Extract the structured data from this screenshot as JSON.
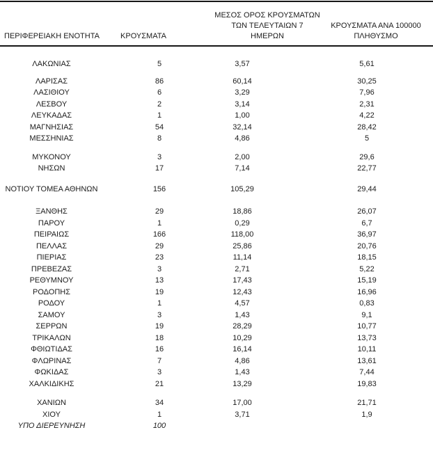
{
  "table": {
    "header": {
      "region": "ΠΕΡΙΦΕΡΕΙΑΚΗ ΕΝΟΤΗΤΑ",
      "cases": "ΚΡΟΥΣΜΑΤΑ",
      "avg7_lines": [
        "ΜΕΣΟΣ ΟΡΟΣ ΚΡΟΥΣΜΑΤΩΝ",
        "ΤΩΝ ΤΕΛΕΥΤΑΙΩΝ 7",
        "ΗΜΕΡΩΝ"
      ],
      "per100k_lines": [
        "ΚΡΟΥΣΜΑΤΑ ΑΝΑ 100000",
        "ΠΛΗΘΥΣΜΟ"
      ]
    },
    "groups": [
      {
        "rows": [
          {
            "region": "ΛΑΚΩΝΙΑΣ",
            "cases": "5",
            "avg7": "3,57",
            "per100k": "5,61"
          }
        ]
      },
      {
        "rows": [
          {
            "region": "ΛΑΡΙΣΑΣ",
            "cases": "86",
            "avg7": "60,14",
            "per100k": "30,25"
          },
          {
            "region": "ΛΑΣΙΘΙΟΥ",
            "cases": "6",
            "avg7": "3,29",
            "per100k": "7,96"
          },
          {
            "region": "ΛΕΣΒΟΥ",
            "cases": "2",
            "avg7": "3,14",
            "per100k": "2,31"
          },
          {
            "region": "ΛΕΥΚΑΔΑΣ",
            "cases": "1",
            "avg7": "1,00",
            "per100k": "4,22"
          },
          {
            "region": "ΜΑΓΝΗΣΙΑΣ",
            "cases": "54",
            "avg7": "32,14",
            "per100k": "28,42"
          },
          {
            "region": "ΜΕΣΣΗΝΙΑΣ",
            "cases": "8",
            "avg7": "4,86",
            "per100k": "5"
          }
        ]
      },
      {
        "rows": [
          {
            "region": "ΜΥΚΟΝΟΥ",
            "cases": "3",
            "avg7": "2,00",
            "per100k": "29,6"
          },
          {
            "region": "ΝΗΣΩΝ",
            "cases": "17",
            "avg7": "7,14",
            "per100k": "22,77"
          }
        ]
      },
      {
        "rows": [
          {
            "region": "ΝΟΤΙΟΥ ΤΟΜΕΑ ΑΘΗΝΩΝ",
            "cases": "156",
            "avg7": "105,29",
            "per100k": "29,44"
          }
        ]
      },
      {
        "rows": [
          {
            "region": "ΞΑΝΘΗΣ",
            "cases": "29",
            "avg7": "18,86",
            "per100k": "26,07"
          },
          {
            "region": "ΠΑΡΟΥ",
            "cases": "1",
            "avg7": "0,29",
            "per100k": "6,7"
          },
          {
            "region": "ΠΕΙΡΑΙΩΣ",
            "cases": "166",
            "avg7": "118,00",
            "per100k": "36,97"
          },
          {
            "region": "ΠΕΛΛΑΣ",
            "cases": "29",
            "avg7": "25,86",
            "per100k": "20,76"
          },
          {
            "region": "ΠΙΕΡΙΑΣ",
            "cases": "23",
            "avg7": "11,14",
            "per100k": "18,15"
          },
          {
            "region": "ΠΡΕΒΕΖΑΣ",
            "cases": "3",
            "avg7": "2,71",
            "per100k": "5,22"
          },
          {
            "region": "ΡΕΘΥΜΝΟΥ",
            "cases": "13",
            "avg7": "17,43",
            "per100k": "15,19"
          },
          {
            "region": "ΡΟΔΟΠΗΣ",
            "cases": "19",
            "avg7": "12,43",
            "per100k": "16,96"
          },
          {
            "region": "ΡΟΔΟΥ",
            "cases": "1",
            "avg7": "4,57",
            "per100k": "0,83"
          },
          {
            "region": "ΣΑΜΟΥ",
            "cases": "3",
            "avg7": "1,43",
            "per100k": "9,1"
          },
          {
            "region": "ΣΕΡΡΩΝ",
            "cases": "19",
            "avg7": "28,29",
            "per100k": "10,77"
          },
          {
            "region": "ΤΡΙΚΑΛΩΝ",
            "cases": "18",
            "avg7": "10,29",
            "per100k": "13,73"
          },
          {
            "region": "ΦΘΙΩΤΙΔΑΣ",
            "cases": "16",
            "avg7": "16,14",
            "per100k": "10,11"
          },
          {
            "region": "ΦΛΩΡΙΝΑΣ",
            "cases": "7",
            "avg7": "4,86",
            "per100k": "13,61"
          },
          {
            "region": "ΦΩΚΙΔΑΣ",
            "cases": "3",
            "avg7": "1,43",
            "per100k": "7,44"
          },
          {
            "region": "ΧΑΛΚΙΔΙΚΗΣ",
            "cases": "21",
            "avg7": "13,29",
            "per100k": "19,83"
          }
        ]
      },
      {
        "rows": [
          {
            "region": "ΧΑΝΙΩΝ",
            "cases": "34",
            "avg7": "17,00",
            "per100k": "21,71"
          },
          {
            "region": "ΧΙΟΥ",
            "cases": "1",
            "avg7": "3,71",
            "per100k": "1,9"
          },
          {
            "region": "ΥΠΟ ΔΙΕΡΕΥΝΗΣΗ",
            "cases": "100",
            "avg7": "",
            "per100k": "",
            "italic": true
          }
        ]
      }
    ]
  },
  "colors": {
    "text": "#1c1c1c",
    "border": "#151515",
    "background": "#ffffff"
  }
}
